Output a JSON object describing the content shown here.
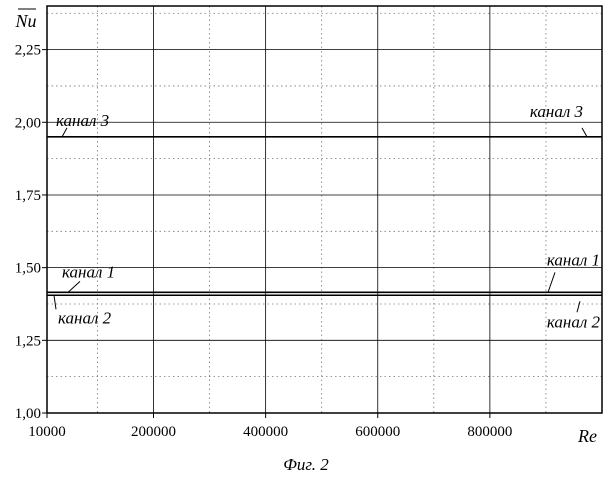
{
  "chart_data": {
    "type": "line",
    "xlabel": "Re",
    "ylabel": "Nu",
    "xlim": [
      10000,
      1000000
    ],
    "ylim": [
      1.0,
      2.4
    ],
    "x_ticks": [
      10000,
      200000,
      400000,
      600000,
      800000
    ],
    "x_tick_labels": [
      "10000",
      "200000",
      "400000",
      "600000",
      "800000"
    ],
    "y_ticks": [
      1.0,
      1.25,
      1.5,
      1.75,
      2.0,
      2.25
    ],
    "y_tick_labels": [
      "1,00",
      "1,25",
      "1,50",
      "1,75",
      "2,00",
      "2,25"
    ],
    "grid": true,
    "series": [
      {
        "name": "канал 3",
        "x": [
          10000,
          1000000
        ],
        "y": [
          1.95,
          1.95
        ]
      },
      {
        "name": "канал 1",
        "x": [
          10000,
          1000000
        ],
        "y": [
          1.415,
          1.415
        ]
      },
      {
        "name": "канал 2",
        "x": [
          10000,
          1000000
        ],
        "y": [
          1.405,
          1.405
        ]
      }
    ],
    "annotations": {
      "series_left": [
        "канал 3",
        "канал 1",
        "канал 2"
      ],
      "series_right": [
        "канал 3",
        "канал 1",
        "канал 2"
      ]
    }
  },
  "caption": "Фиг. 2"
}
